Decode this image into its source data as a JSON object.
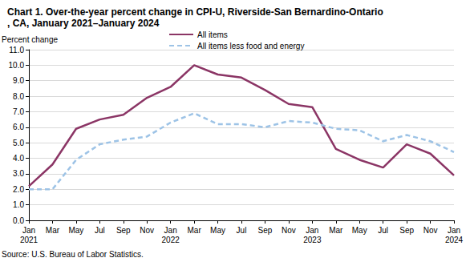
{
  "chart_data": {
    "type": "line",
    "title": "Chart 1. Over-the-year percent change in CPI-U, Riverside-San Bernardino-Ontario, CA, January 2021–January 2024",
    "y_label": "Percent change",
    "source": "Source: U.S. Bureau of Labor Statistics.",
    "categories": [
      "Jan\n2021",
      "Mar",
      "May",
      "Jul",
      "Sep",
      "Nov",
      "Jan\n2022",
      "Mar",
      "May",
      "Jul",
      "Sep",
      "Nov",
      "Jan\n2023",
      "Mar",
      "May",
      "Jul",
      "Sep",
      "Nov",
      "Jan\n2024"
    ],
    "series": [
      {
        "name": "All items",
        "color": "#8b3565",
        "line_style": "solid",
        "values": [
          2.2,
          3.6,
          5.9,
          6.5,
          6.8,
          7.9,
          8.6,
          10.0,
          9.4,
          9.2,
          8.4,
          7.5,
          7.3,
          4.6,
          3.9,
          3.4,
          4.9,
          4.3,
          2.9
        ]
      },
      {
        "name": "All items less food and energy",
        "color": "#9dc3e6",
        "line_style": "dashed",
        "values": [
          2.0,
          2.0,
          3.9,
          4.9,
          5.2,
          5.4,
          6.3,
          6.9,
          6.2,
          6.2,
          6.0,
          6.4,
          6.3,
          5.9,
          5.8,
          5.1,
          5.5,
          5.1,
          4.4
        ]
      }
    ],
    "ylim": [
      0,
      11
    ],
    "yticks": [
      {
        "value": 0,
        "label": "0.0"
      },
      {
        "value": 1,
        "label": "1.0"
      },
      {
        "value": 2,
        "label": "2.0"
      },
      {
        "value": 3,
        "label": "3.0"
      },
      {
        "value": 4,
        "label": "4.0"
      },
      {
        "value": 5,
        "label": "5.0"
      },
      {
        "value": 6,
        "label": "6.0"
      },
      {
        "value": 7,
        "label": "7.0"
      },
      {
        "value": 8,
        "label": "8.0"
      },
      {
        "value": 9,
        "label": "9.0"
      },
      {
        "value": 10,
        "label": "10.0"
      },
      {
        "value": 11,
        "label": "11.0"
      }
    ],
    "grid": true,
    "legend": "top"
  }
}
